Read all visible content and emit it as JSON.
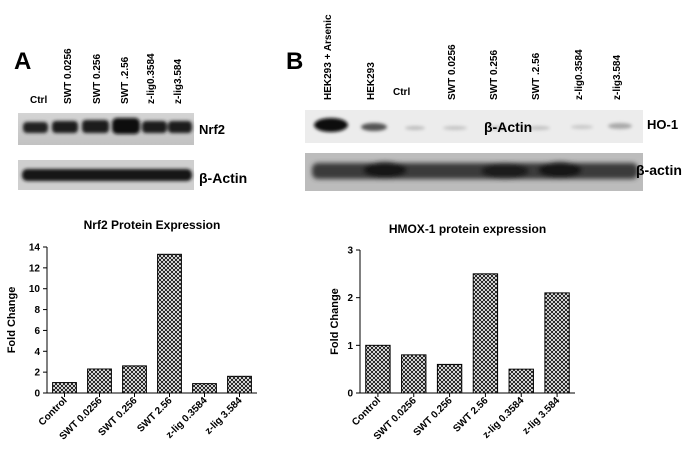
{
  "panel_a": {
    "letter": "A",
    "lanes": [
      "Ctrl",
      "SWT 0.0256",
      "SWT 0.256",
      "SWT .2.56",
      "z-lig0.3584",
      "z-lig3.584"
    ],
    "blot1_label": "Nrf2",
    "blot2_label": "β-Actin"
  },
  "panel_b": {
    "letter": "B",
    "lanes": [
      "HEK293 + Arsenic",
      "HEK293",
      "Ctrl",
      "SWT 0.0256",
      "SWT 0.256",
      "SWT .2.56",
      "z-lig0.3584",
      "z-lig3.584"
    ],
    "blot1_inner_label": "β-Actin",
    "blot1_label": "HO-1",
    "blot2_label": "β-actin"
  },
  "chart_data": [
    {
      "type": "bar",
      "title": "Nrf2 Protein Expression",
      "xlabel": "",
      "ylabel": "Fold Change",
      "categories": [
        "Control",
        "SWT 0.0256",
        "SWT 0.256",
        "SWT 2.56",
        "z-lig 0.3584",
        "z-lig 3.584"
      ],
      "values": [
        1.0,
        2.3,
        2.6,
        13.3,
        0.9,
        1.6
      ],
      "ylim": [
        0,
        14
      ],
      "yticks": [
        "0",
        "2",
        "4",
        "6",
        "8",
        "10",
        "12",
        "14"
      ],
      "grid": false,
      "bar_fill": "crosshatch"
    },
    {
      "type": "bar",
      "title": "HMOX-1 protein expression",
      "xlabel": "",
      "ylabel": "Fold Change",
      "categories": [
        "Control",
        "SWT 0.0256",
        "SWT 0.256",
        "SWT 2.56",
        "z-lig 0.3584",
        "z-lig 3.584"
      ],
      "values": [
        1.0,
        0.8,
        0.6,
        2.5,
        0.5,
        2.1
      ],
      "ylim": [
        0,
        3
      ],
      "yticks": [
        "0",
        "1",
        "2",
        "3"
      ],
      "grid": false,
      "bar_fill": "crosshatch"
    }
  ]
}
